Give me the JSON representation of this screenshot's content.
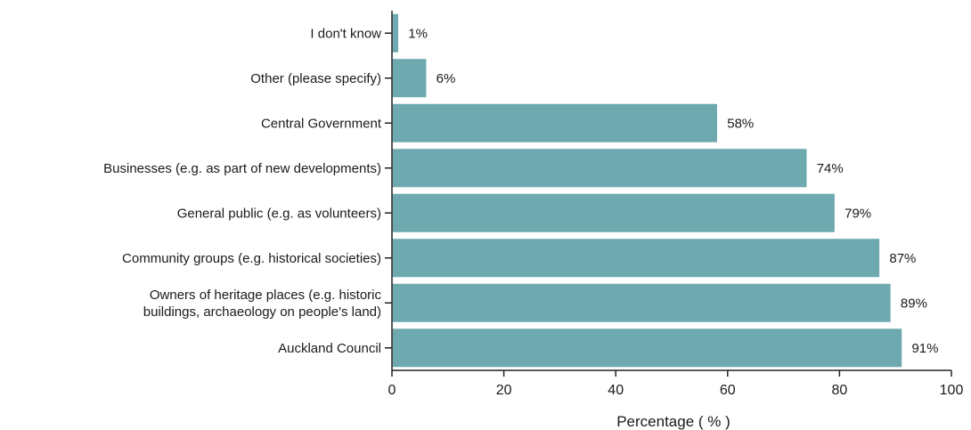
{
  "chart_data": {
    "type": "bar",
    "orientation": "horizontal",
    "categories": [
      [
        "I don't know"
      ],
      [
        "Other (please specify)"
      ],
      [
        "Central Government"
      ],
      [
        "Businesses (e.g. as part of new developments)"
      ],
      [
        "General public (e.g. as volunteers)"
      ],
      [
        "Community groups (e.g. historical societies)"
      ],
      [
        "Owners of heritage places (e.g. historic",
        "buildings, archaeology on people's land)"
      ],
      [
        "Auckland Council"
      ]
    ],
    "values": [
      1,
      6,
      58,
      74,
      79,
      87,
      89,
      91
    ],
    "value_labels": [
      "1%",
      "6%",
      "58%",
      "74%",
      "79%",
      "87%",
      "89%",
      "91%"
    ],
    "xlabel": "Percentage ( % )",
    "ylabel": "",
    "title": "",
    "xlim": [
      0,
      100
    ],
    "xticks": [
      0,
      20,
      40,
      60,
      80,
      100
    ],
    "grid": false,
    "bar_color": "#6fa9b0"
  }
}
